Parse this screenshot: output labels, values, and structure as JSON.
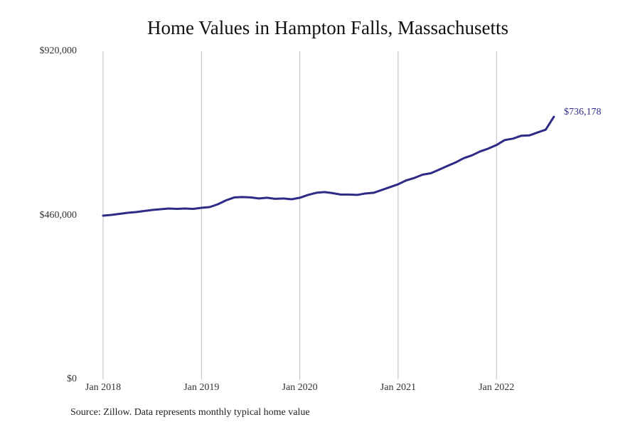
{
  "chart_data": {
    "type": "line",
    "title": "Home Values in Hampton Falls, Massachusetts",
    "xlabel": "",
    "ylabel": "",
    "ylim": [
      0,
      920000
    ],
    "yticks": [
      "$0",
      "$460,000",
      "$920,000"
    ],
    "ytick_values": [
      0,
      460000,
      920000
    ],
    "xticks": [
      "Jan 2018",
      "Jan 2019",
      "Jan 2020",
      "Jan 2021",
      "Jan 2022"
    ],
    "grid": "vertical lines at x ticks",
    "line_color": "#2e2a85",
    "end_label": "$736,178",
    "source": "Source: Zillow. Data represents monthly typical home value",
    "series": [
      {
        "name": "Home value",
        "x": [
          "2018-01",
          "2018-02",
          "2018-03",
          "2018-04",
          "2018-05",
          "2018-06",
          "2018-07",
          "2018-08",
          "2018-09",
          "2018-10",
          "2018-11",
          "2018-12",
          "2019-01",
          "2019-02",
          "2019-03",
          "2019-04",
          "2019-05",
          "2019-06",
          "2019-07",
          "2019-08",
          "2019-09",
          "2019-10",
          "2019-11",
          "2019-12",
          "2020-01",
          "2020-02",
          "2020-03",
          "2020-04",
          "2020-05",
          "2020-06",
          "2020-07",
          "2020-08",
          "2020-09",
          "2020-10",
          "2020-11",
          "2020-12",
          "2021-01",
          "2021-02",
          "2021-03",
          "2021-04",
          "2021-05",
          "2021-06",
          "2021-07",
          "2021-08",
          "2021-09",
          "2021-10",
          "2021-11",
          "2021-12",
          "2022-01",
          "2022-02",
          "2022-03",
          "2022-04",
          "2022-05",
          "2022-06",
          "2022-07",
          "2022-08"
        ],
        "values": [
          459000,
          461000,
          464000,
          467000,
          469000,
          472000,
          475000,
          477000,
          479000,
          478000,
          479000,
          478000,
          481000,
          483000,
          491000,
          502000,
          510000,
          511000,
          510000,
          507000,
          509000,
          506000,
          507000,
          505000,
          509000,
          517000,
          523000,
          525000,
          522000,
          518000,
          518000,
          517000,
          521000,
          523000,
          531000,
          539000,
          547000,
          558000,
          565000,
          574000,
          578000,
          588000,
          598000,
          608000,
          620000,
          628000,
          639000,
          647000,
          657000,
          671000,
          675000,
          683000,
          684000,
          692000,
          700000,
          736178
        ]
      }
    ]
  }
}
